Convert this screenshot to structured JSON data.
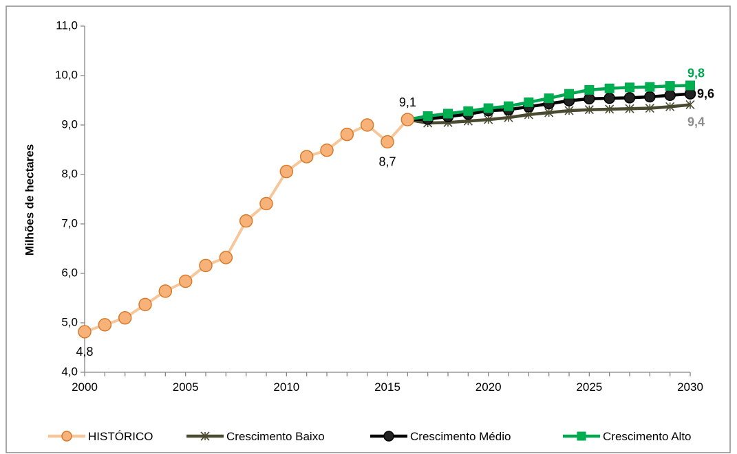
{
  "chart_data": {
    "type": "line",
    "ylabel": "Milhões de hectares",
    "xlim": [
      2000,
      2030
    ],
    "ylim": [
      4.0,
      11.0
    ],
    "x_ticks": [
      2000,
      2005,
      2010,
      2015,
      2020,
      2025,
      2030
    ],
    "x_tick_labels": [
      "2000",
      "2005",
      "2010",
      "2015",
      "2020",
      "2025",
      "2030"
    ],
    "y_ticks": [
      4,
      5,
      6,
      7,
      8,
      9,
      10,
      11
    ],
    "y_tick_labels": [
      "4,0",
      "5,0",
      "6,0",
      "7,0",
      "8,0",
      "9,0",
      "10,0",
      "11,0"
    ],
    "legend_position": "bottom",
    "series": [
      {
        "name": "HISTÓRICO",
        "color": "#f5c79a",
        "marker": "circle",
        "marker_fill": "#f7b27a",
        "marker_stroke": "#d97a2b",
        "x": [
          2000,
          2001,
          2002,
          2003,
          2004,
          2005,
          2006,
          2007,
          2008,
          2009,
          2010,
          2011,
          2012,
          2013,
          2014,
          2015,
          2016
        ],
        "values": [
          4.82,
          4.96,
          5.1,
          5.37,
          5.64,
          5.84,
          6.16,
          6.32,
          7.06,
          7.41,
          8.06,
          8.36,
          8.49,
          8.81,
          9.0,
          8.66,
          9.11
        ]
      },
      {
        "name": "Crescimento Baixo",
        "color": "#4a4a30",
        "marker": "asterisk",
        "x": [
          2016,
          2017,
          2018,
          2019,
          2020,
          2021,
          2022,
          2023,
          2024,
          2025,
          2026,
          2027,
          2028,
          2029,
          2030
        ],
        "values": [
          9.11,
          9.04,
          9.05,
          9.08,
          9.11,
          9.15,
          9.21,
          9.25,
          9.29,
          9.31,
          9.32,
          9.33,
          9.34,
          9.37,
          9.41
        ]
      },
      {
        "name": "Crescimento Médio",
        "color": "#000000",
        "marker": "circle",
        "marker_fill": "#222222",
        "marker_stroke": "#000000",
        "x": [
          2016,
          2017,
          2018,
          2019,
          2020,
          2021,
          2022,
          2023,
          2024,
          2025,
          2026,
          2027,
          2028,
          2029,
          2030
        ],
        "values": [
          9.11,
          9.12,
          9.17,
          9.22,
          9.29,
          9.31,
          9.37,
          9.43,
          9.49,
          9.53,
          9.54,
          9.55,
          9.57,
          9.6,
          9.63
        ]
      },
      {
        "name": "Crescimento Alto",
        "color": "#00a650",
        "marker": "square",
        "marker_fill": "#00b050",
        "marker_stroke": "#00a650",
        "x": [
          2016,
          2017,
          2018,
          2019,
          2020,
          2021,
          2022,
          2023,
          2024,
          2025,
          2026,
          2027,
          2028,
          2029,
          2030
        ],
        "values": [
          9.11,
          9.18,
          9.23,
          9.28,
          9.34,
          9.38,
          9.46,
          9.54,
          9.63,
          9.71,
          9.74,
          9.76,
          9.77,
          9.79,
          9.8
        ]
      }
    ],
    "annotations": [
      {
        "text": "4,8",
        "series": "HISTÓRICO",
        "x": 2000,
        "y": 4.82,
        "placement": "below",
        "color": "#000000",
        "bold": false
      },
      {
        "text": "9,1",
        "series": "HISTÓRICO",
        "x": 2016,
        "y": 9.11,
        "placement": "above",
        "color": "#000000",
        "bold": false
      },
      {
        "text": "8,7",
        "series": "HISTÓRICO",
        "x": 2015,
        "y": 8.66,
        "placement": "below",
        "color": "#000000",
        "bold": false
      },
      {
        "text": "9,8",
        "series": "Crescimento Alto",
        "x": 2030,
        "y": 9.8,
        "placement": "above-right",
        "color": "#00a650",
        "bold": true
      },
      {
        "text": "9,6",
        "series": "Crescimento Médio",
        "x": 2030,
        "y": 9.63,
        "placement": "right",
        "color": "#000000",
        "bold": true
      },
      {
        "text": "9,4",
        "series": "Crescimento Baixo",
        "x": 2030,
        "y": 9.41,
        "placement": "below-right",
        "color": "#8c8c8c",
        "bold": true
      }
    ]
  }
}
